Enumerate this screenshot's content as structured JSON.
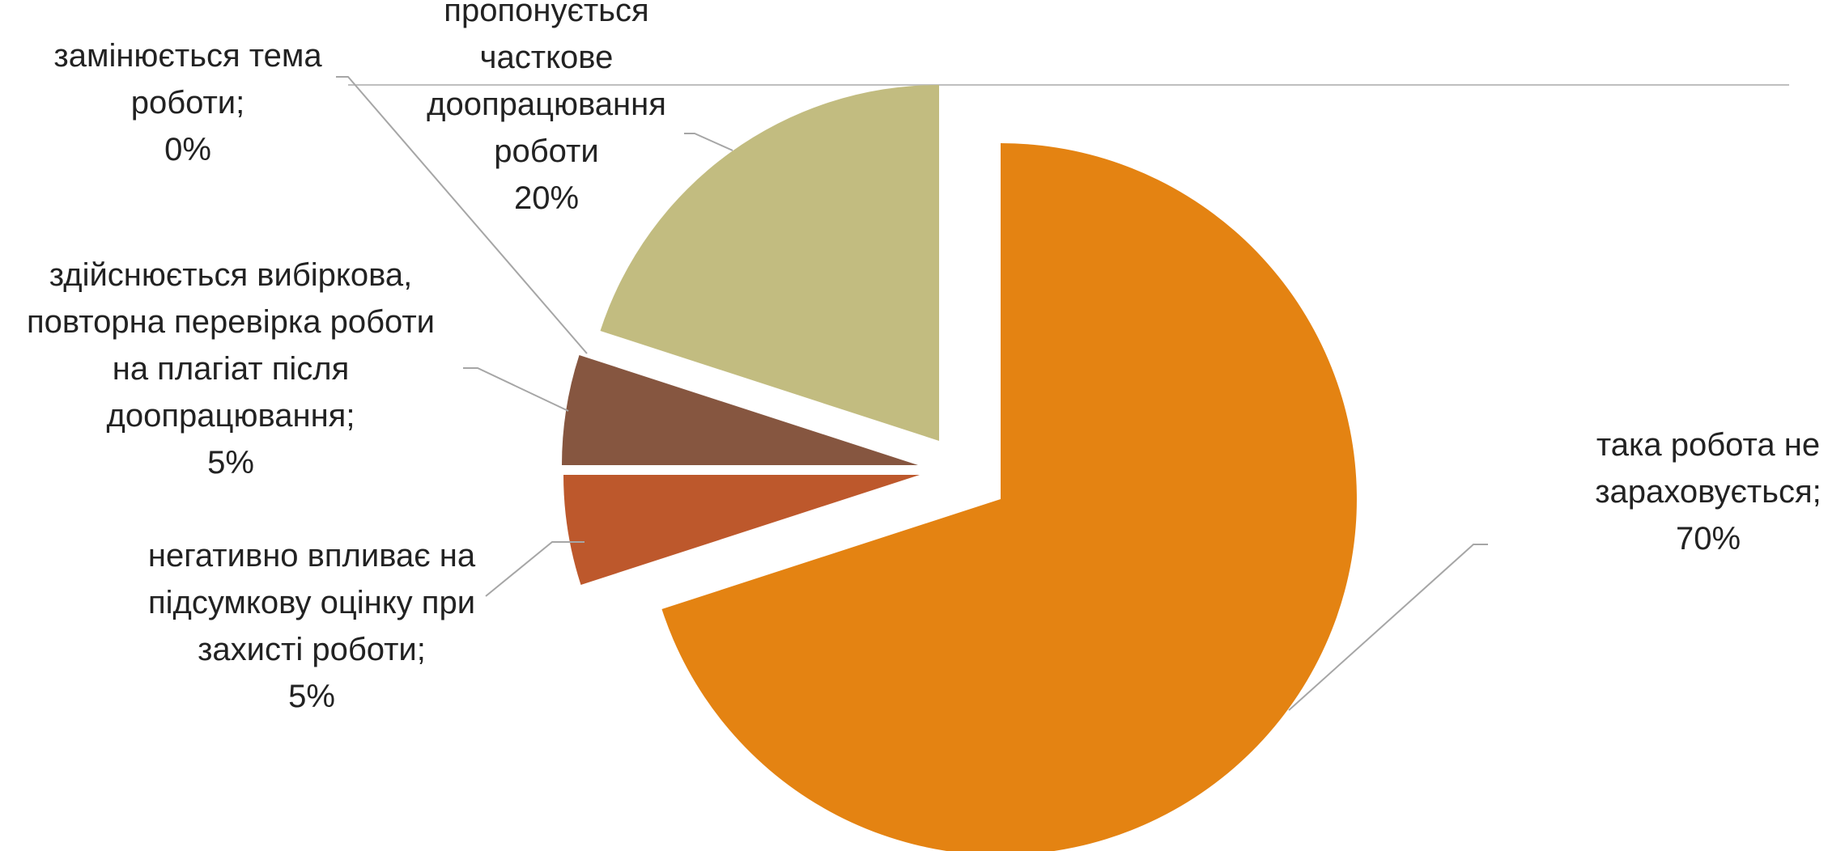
{
  "chart_data": {
    "type": "pie",
    "title": "",
    "slices": [
      {
        "label_lines": [
          "така робота не",
          "зараховується;",
          "70%"
        ],
        "value": 70,
        "color": "#E48312"
      },
      {
        "label_lines": [
          "негативно впливає на",
          "підсумкову оцінку при",
          "захисті роботи;",
          "5%"
        ],
        "value": 5,
        "color": "#BD582C"
      },
      {
        "label_lines": [
          "здійснюється вибіркова,",
          "повторна перевірка роботи",
          "на плагіат після",
          "доопрацювання;",
          "5%"
        ],
        "value": 5,
        "color": "#865640"
      },
      {
        "label_lines": [
          "замінюється тема",
          "роботи;",
          "0%"
        ],
        "value": 0,
        "color": "#9B8357"
      },
      {
        "label_lines": [
          "пропонується",
          "часткове",
          "доопрацювання",
          "роботи",
          "20%"
        ],
        "value": 20,
        "color": "#C2BC80"
      }
    ]
  }
}
